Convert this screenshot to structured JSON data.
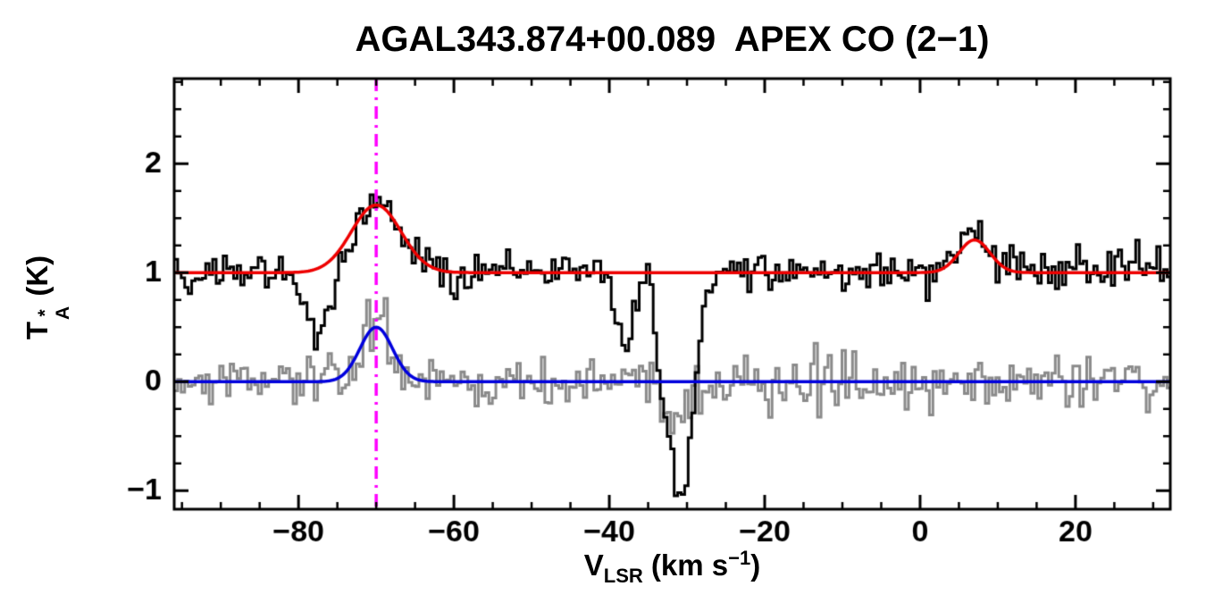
{
  "figure": {
    "background": "#FFFFFF"
  },
  "chart_data": {
    "type": "line",
    "title": "AGAL343.874+00.089  APEX CO (2−1)",
    "xlabel": "V_LSR (km s^−1)",
    "ylabel": "T_A^* (K)",
    "xlabel_parts": {
      "symbol": "V",
      "subscript": "LSR",
      "unit_open": " (km s",
      "unit_sup": "−1",
      "unit_close": ")"
    },
    "ylabel_parts": {
      "symbol": "T",
      "superscript": "*",
      "subscript": "A",
      "unit": " (K)"
    },
    "xlim": [
      -96,
      32.2
    ],
    "ylim": [
      -1.17,
      2.78
    ],
    "x_major_ticks": [
      -80,
      -60,
      -40,
      -20,
      0,
      20
    ],
    "x_tick_labels": [
      "−80",
      "−60",
      "−40",
      "−20",
      "0",
      "20"
    ],
    "x_minor_interval": 5,
    "y_major_ticks": [
      -1,
      0,
      1,
      2
    ],
    "y_tick_labels": [
      "−1",
      "0",
      "1",
      "2"
    ],
    "y_minor_interval": 0.25,
    "grid": false,
    "legend": "none",
    "frame_color": "#000000",
    "vline": {
      "x": -70,
      "color": "#FF00FF",
      "style": "dash-dot",
      "name": "systemic-velocity-marker"
    },
    "channel_width_kms": 0.45,
    "noise_seed": 20240613,
    "series": [
      {
        "name": "reference-spectrum-gray",
        "color": "#8A8A8A",
        "style": "histogram",
        "line_width": 3,
        "baseline": 0.0,
        "noise_sigma": 0.115,
        "components": [
          {
            "center": -70.0,
            "amplitude": 0.55,
            "sigma": 1.7
          },
          {
            "center": -31.0,
            "amplitude": -0.5,
            "sigma": 1.4
          }
        ]
      },
      {
        "name": "observed-spectrum-black",
        "color": "#000000",
        "style": "histogram",
        "line_width": 3,
        "baseline": 1.0,
        "noise_sigma": 0.09,
        "components": [
          {
            "center": -70.0,
            "amplitude": 0.62,
            "sigma": 3.2
          },
          {
            "center": -77.5,
            "amplitude": -0.62,
            "sigma": 1.7
          },
          {
            "center": -38.0,
            "amplitude": -0.62,
            "sigma": 1.2
          },
          {
            "center": -35.2,
            "amplitude": 0.28,
            "sigma": 0.5
          },
          {
            "center": -33.3,
            "amplitude": -0.5,
            "sigma": 0.8
          },
          {
            "center": -30.8,
            "amplitude": -2.05,
            "sigma": 1.6
          },
          {
            "center": 7.0,
            "amplitude": 0.4,
            "sigma": 1.8
          }
        ]
      }
    ],
    "fits": [
      {
        "name": "gaussian-fit-blue",
        "color": "#0000DD",
        "line_width": 3.5,
        "baseline": 0.0,
        "components": [
          {
            "center": -70.0,
            "amplitude": 0.5,
            "sigma": 2.1
          }
        ]
      },
      {
        "name": "gaussian-fit-red",
        "color": "#EE0000",
        "line_width": 3.5,
        "baseline": 1.0,
        "components": [
          {
            "center": -70.0,
            "amplitude": 0.62,
            "sigma": 3.2
          },
          {
            "center": 7.0,
            "amplitude": 0.3,
            "sigma": 2.0
          }
        ]
      }
    ]
  }
}
